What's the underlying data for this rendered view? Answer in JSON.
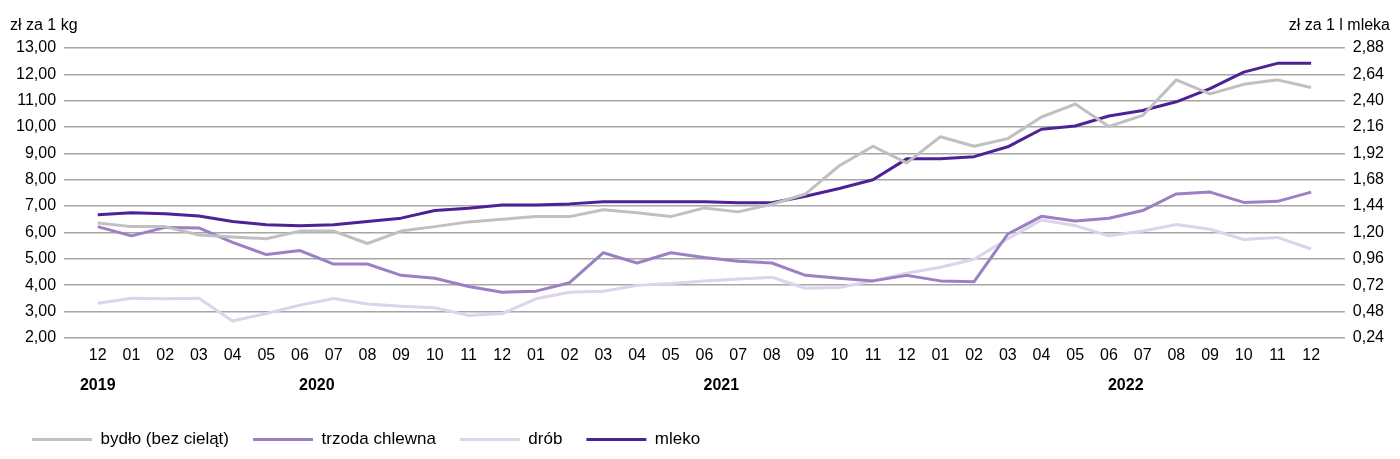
{
  "chart_data": {
    "type": "line",
    "ylabel": "zł za 1 kg",
    "y2label": "zł za 1 l mleka",
    "x": [
      "2019-12",
      "2020-01",
      "2020-02",
      "2020-03",
      "2020-04",
      "2020-05",
      "2020-06",
      "2020-07",
      "2020-08",
      "2020-09",
      "2020-10",
      "2020-11",
      "2020-12",
      "2021-01",
      "2021-02",
      "2021-03",
      "2021-04",
      "2021-05",
      "2021-06",
      "2021-07",
      "2021-08",
      "2021-09",
      "2021-10",
      "2021-11",
      "2021-12",
      "2022-01",
      "2022-02",
      "2022-03",
      "2022-04",
      "2022-05",
      "2022-06",
      "2022-07",
      "2022-08",
      "2022-09",
      "2022-10",
      "2022-11",
      "2022-12"
    ],
    "xlim": [
      "2019-11",
      "2023-01"
    ],
    "xticks": [
      {
        "value": "2019-12",
        "label": "12"
      },
      {
        "value": "2020-01",
        "label": "01"
      },
      {
        "value": "2020-02",
        "label": "02"
      },
      {
        "value": "2020-03",
        "label": "03"
      },
      {
        "value": "2020-04",
        "label": "04"
      },
      {
        "value": "2020-05",
        "label": "05"
      },
      {
        "value": "2020-06",
        "label": "06"
      },
      {
        "value": "2020-07",
        "label": "07"
      },
      {
        "value": "2020-08",
        "label": "08"
      },
      {
        "value": "2020-09",
        "label": "09"
      },
      {
        "value": "2020-10",
        "label": "10"
      },
      {
        "value": "2020-11",
        "label": "11"
      },
      {
        "value": "2020-12",
        "label": "12"
      },
      {
        "value": "2021-01",
        "label": "01"
      },
      {
        "value": "2021-02",
        "label": "02"
      },
      {
        "value": "2021-03",
        "label": "03"
      },
      {
        "value": "2021-04",
        "label": "04"
      },
      {
        "value": "2021-05",
        "label": "05"
      },
      {
        "value": "2021-06",
        "label": "06"
      },
      {
        "value": "2021-07",
        "label": "07"
      },
      {
        "value": "2021-08",
        "label": "08"
      },
      {
        "value": "2021-09",
        "label": "09"
      },
      {
        "value": "2021-10",
        "label": "10"
      },
      {
        "value": "2021-11",
        "label": "11"
      },
      {
        "value": "2021-12",
        "label": "12"
      },
      {
        "value": "2022-01",
        "label": "01"
      },
      {
        "value": "2022-02",
        "label": "02"
      },
      {
        "value": "2022-03",
        "label": "03"
      },
      {
        "value": "2022-04",
        "label": "04"
      },
      {
        "value": "2022-05",
        "label": "05"
      },
      {
        "value": "2022-06",
        "label": "06"
      },
      {
        "value": "2022-07",
        "label": "07"
      },
      {
        "value": "2022-08",
        "label": "08"
      },
      {
        "value": "2022-09",
        "label": "09"
      },
      {
        "value": "2022-10",
        "label": "10"
      },
      {
        "value": "2022-11",
        "label": "11"
      },
      {
        "value": "2022-12",
        "label": "12"
      }
    ],
    "ylim": [
      2,
      13
    ],
    "yticks": [
      {
        "value": 2,
        "label": "2,00"
      },
      {
        "value": 3,
        "label": "3,00"
      },
      {
        "value": 4,
        "label": "4,00"
      },
      {
        "value": 5,
        "label": "5,00"
      },
      {
        "value": 6,
        "label": "6,00"
      },
      {
        "value": 7,
        "label": "7,00"
      },
      {
        "value": 8,
        "label": "8,00"
      },
      {
        "value": 9,
        "label": "9,00"
      },
      {
        "value": 10,
        "label": "10,00"
      },
      {
        "value": 11,
        "label": "11,00"
      },
      {
        "value": 12,
        "label": "12,00"
      },
      {
        "value": 13,
        "label": "13,00"
      }
    ],
    "y2lim": [
      0.24,
      2.88
    ],
    "y2ticks": [
      {
        "value": 0.24,
        "label": "0,24"
      },
      {
        "value": 0.48,
        "label": "0,48"
      },
      {
        "value": 0.72,
        "label": "0,72"
      },
      {
        "value": 0.96,
        "label": "0,96"
      },
      {
        "value": 1.2,
        "label": "1,20"
      },
      {
        "value": 1.44,
        "label": "1,44"
      },
      {
        "value": 1.68,
        "label": "1,68"
      },
      {
        "value": 1.92,
        "label": "1,92"
      },
      {
        "value": 2.16,
        "label": "2,16"
      },
      {
        "value": 2.4,
        "label": "2,40"
      },
      {
        "value": 2.64,
        "label": "2,64"
      },
      {
        "value": 2.88,
        "label": "2,88"
      }
    ],
    "grid": "y",
    "legend": "bottom left",
    "line_style": "solid",
    "annotations": [
      "2019",
      "2020",
      "2021",
      "2022"
    ],
    "series": [
      {
        "name": "bydło (bez cieląt)",
        "color": "#c0c0c0",
        "values": [
          6.36,
          6.22,
          6.22,
          5.9,
          5.83,
          5.76,
          6.05,
          6.05,
          5.58,
          6.05,
          6.22,
          6.4,
          6.5,
          6.6,
          6.6,
          6.86,
          6.75,
          6.6,
          6.93,
          6.78,
          7.07,
          7.46,
          8.53,
          9.27,
          8.64,
          9.63,
          9.27,
          9.56,
          10.38,
          10.87,
          10.02,
          10.44,
          11.79,
          11.26,
          11.62,
          11.79,
          11.5
        ]
      },
      {
        "name": "trzoda chlewna",
        "color": "#9b80c4",
        "values": [
          6.22,
          5.87,
          6.19,
          6.17,
          5.62,
          5.16,
          5.31,
          4.8,
          4.8,
          4.37,
          4.26,
          3.95,
          3.73,
          3.77,
          4.09,
          5.23,
          4.84,
          5.23,
          5.05,
          4.91,
          4.84,
          4.37,
          4.26,
          4.16,
          4.37,
          4.16,
          4.13,
          5.94,
          6.61,
          6.43,
          6.54,
          6.83,
          7.46,
          7.53,
          7.14,
          7.18,
          7.53
        ]
      },
      {
        "name": "drób",
        "color": "#ddd3ea",
        "values": [
          3.31,
          3.5,
          3.48,
          3.5,
          2.64,
          2.92,
          3.24,
          3.49,
          3.28,
          3.2,
          3.14,
          2.85,
          2.92,
          3.48,
          3.73,
          3.77,
          3.99,
          4.06,
          4.16,
          4.23,
          4.3,
          3.88,
          3.91,
          4.16,
          4.45,
          4.68,
          4.98,
          5.76,
          6.47,
          6.26,
          5.87,
          6.05,
          6.3,
          6.12,
          5.73,
          5.81,
          5.37
        ]
      },
      {
        "name": "mleko",
        "color": "#4e2296",
        "axis": "y2",
        "values": [
          1.36,
          1.38,
          1.37,
          1.35,
          1.3,
          1.27,
          1.26,
          1.27,
          1.3,
          1.33,
          1.4,
          1.42,
          1.45,
          1.45,
          1.46,
          1.48,
          1.48,
          1.48,
          1.48,
          1.47,
          1.47,
          1.53,
          1.6,
          1.68,
          1.87,
          1.87,
          1.89,
          1.98,
          2.14,
          2.17,
          2.26,
          2.31,
          2.39,
          2.51,
          2.66,
          2.74,
          2.74
        ]
      }
    ]
  }
}
